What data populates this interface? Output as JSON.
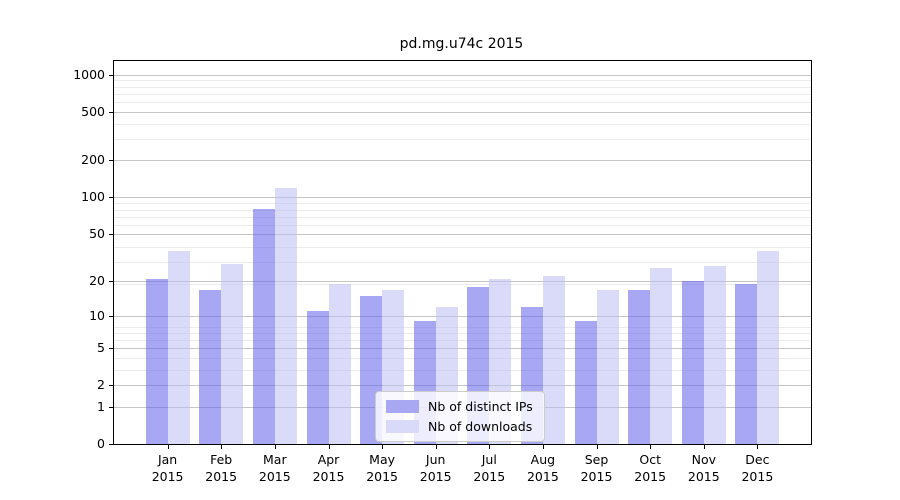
{
  "chart_data": {
    "type": "bar",
    "title": "pd.mg.u74c 2015",
    "categories": [
      "Jan 2015",
      "Feb 2015",
      "Mar 2015",
      "Apr 2015",
      "May 2015",
      "Jun 2015",
      "Jul 2015",
      "Aug 2015",
      "Sep 2015",
      "Oct 2015",
      "Nov 2015",
      "Dec 2015"
    ],
    "series": [
      {
        "name": "Nb of distinct IPs",
        "color": "#a8a8f2",
        "fill": "rgba(94,94,233,0.55)",
        "values": [
          21,
          17,
          80,
          11,
          15,
          9,
          18,
          12,
          9,
          17,
          20,
          19
        ]
      },
      {
        "name": "Nb of downloads",
        "color": "#d9d9f9",
        "fill": "rgba(187,187,244,0.55)",
        "values": [
          36,
          28,
          120,
          19,
          17,
          12,
          21,
          22,
          17,
          26,
          27,
          36
        ]
      }
    ],
    "yticks": [
      0,
      1,
      2,
      5,
      10,
      20,
      50,
      100,
      200,
      500,
      1000
    ],
    "yscale": "log10(1+v)",
    "ylim": [
      0,
      1290
    ],
    "xlabel": "",
    "ylabel": "",
    "grid": "horizontal major and minor gridlines",
    "legend_position": "lower center"
  },
  "colors": {
    "background": "#ffffff",
    "axis": "#000000",
    "major_grid": "#c6c6c6",
    "minor_grid": "#ebebeb",
    "legend_border": "#cccccc"
  }
}
